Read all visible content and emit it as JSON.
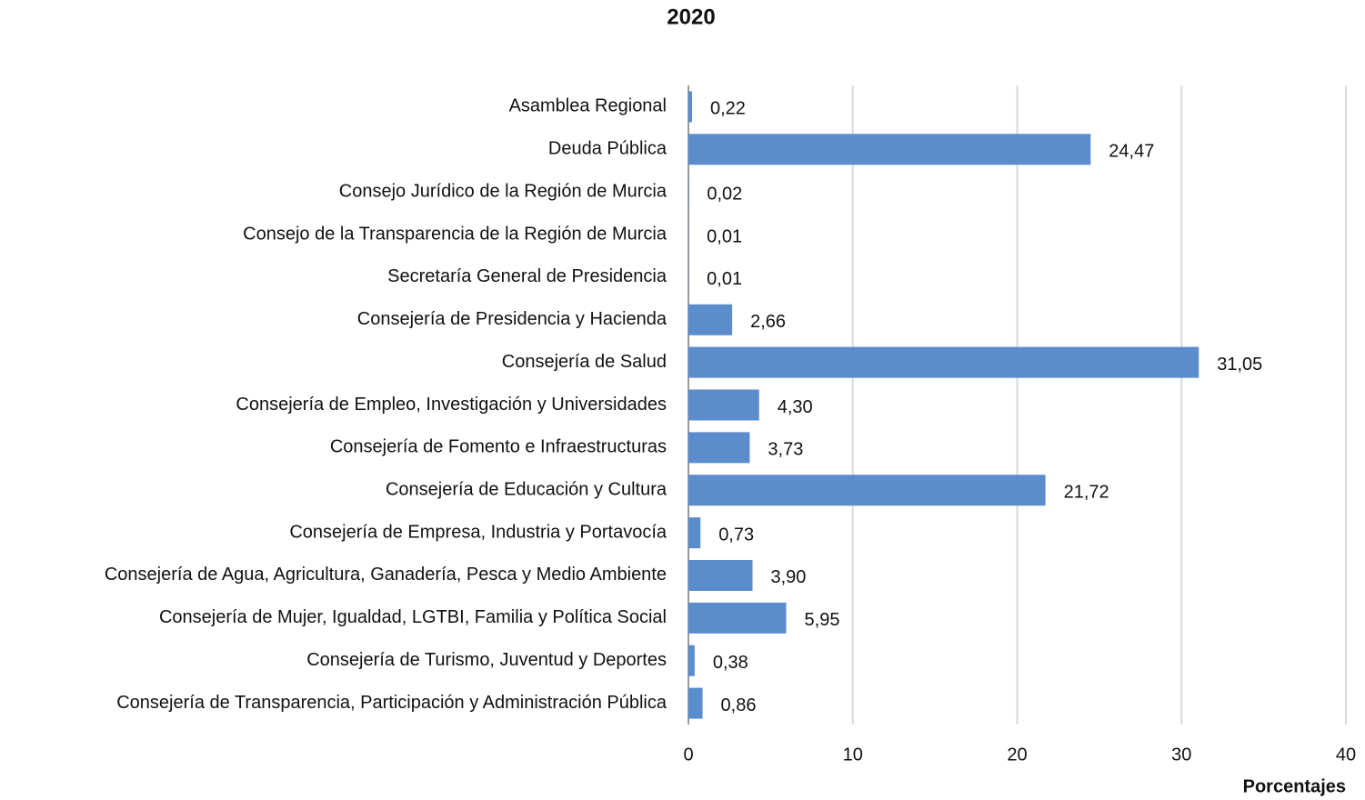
{
  "chart_data": {
    "type": "barh",
    "title": "2020",
    "x_label": "Porcentajes",
    "categories": [
      "Asamblea Regional",
      "Deuda Pública",
      "Consejo Jurídico de la Región de Murcia",
      "Consejo de la Transparencia de la Región de Murcia",
      "Secretaría General de Presidencia",
      "Consejería de Presidencia y Hacienda",
      "Consejería de Salud",
      "Consejería de Empleo, Investigación y Universidades",
      "Consejería de Fomento e Infraestructuras",
      "Consejería de Educación y Cultura",
      "Consejería de Empresa, Industria y Portavocía",
      "Consejería de Agua, Agricultura, Ganadería, Pesca y Medio Ambiente",
      "Consejería de Mujer, Igualdad, LGTBI, Familia y Política Social",
      "Consejería de Turismo, Juventud y Deportes",
      "Consejería de Transparencia, Participación y Administración Pública"
    ],
    "values": [
      0.22,
      24.47,
      0.02,
      0.01,
      0.01,
      2.66,
      31.05,
      4.3,
      3.73,
      21.72,
      0.73,
      3.9,
      5.95,
      0.38,
      0.86
    ],
    "value_labels": [
      "0,22",
      "24,47",
      "0,02",
      "0,01",
      "0,01",
      "2,66",
      "31,05",
      "4,30",
      "3,73",
      "21,72",
      "0,73",
      "3,90",
      "5,95",
      "0,38",
      "0,86"
    ],
    "color": "#5b8ccc",
    "xlim": [
      0,
      40
    ],
    "xticks": [
      0,
      10,
      20,
      30,
      40
    ],
    "grid": true
  }
}
